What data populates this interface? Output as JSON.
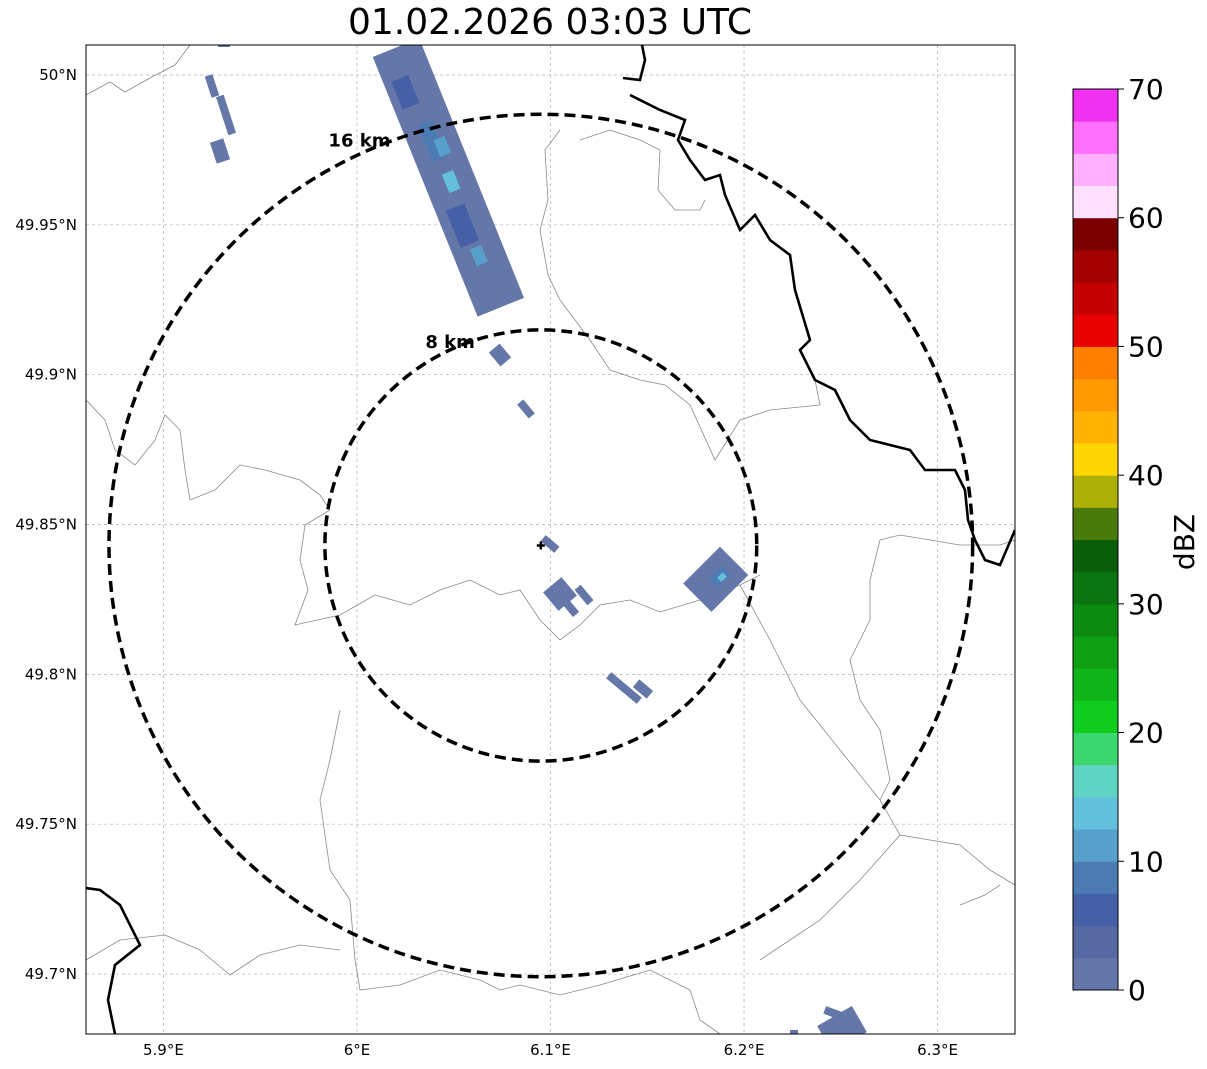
{
  "title": "01.02.2026 03:03 UTC",
  "map": {
    "extent": {
      "lon_min": 5.86,
      "lon_max": 6.34,
      "lat_min": 49.68,
      "lat_max": 50.01
    },
    "lon_ticks": [
      {
        "value": 5.9,
        "label": "5.9°E"
      },
      {
        "value": 6.0,
        "label": "6°E"
      },
      {
        "value": 6.1,
        "label": "6.1°E"
      },
      {
        "value": 6.2,
        "label": "6.2°E"
      },
      {
        "value": 6.3,
        "label": "6.3°E"
      }
    ],
    "lat_ticks": [
      {
        "value": 50.0,
        "label": "50°N"
      },
      {
        "value": 49.95,
        "label": "49.95°N"
      },
      {
        "value": 49.9,
        "label": "49.9°N"
      },
      {
        "value": 49.85,
        "label": "49.85°N"
      },
      {
        "value": 49.8,
        "label": "49.8°N"
      },
      {
        "value": 49.75,
        "label": "49.75°N"
      },
      {
        "value": 49.7,
        "label": "49.7°N"
      }
    ],
    "radar_site": {
      "lon": 6.095,
      "lat": 49.843
    },
    "range_rings": [
      {
        "label": "8 km",
        "radius_km": 8
      },
      {
        "label": "16 km",
        "radius_km": 16
      }
    ],
    "grid": true
  },
  "colorbar": {
    "label": "dBZ",
    "ticks": [
      "0",
      "10",
      "20",
      "30",
      "40",
      "50",
      "60",
      "70"
    ],
    "colors": [
      "#6477a8",
      "#5669a2",
      "#4560a6",
      "#4b7bb2",
      "#57a0cb",
      "#62c0dc",
      "#5fd4c4",
      "#3dd76f",
      "#10cc1e",
      "#10b418",
      "#0e9f12",
      "#0c8a10",
      "#0a7410",
      "#095e0b",
      "#4a7a0c",
      "#aeb00a",
      "#ffd700",
      "#ffb200",
      "#ff9a00",
      "#ff7f00",
      "#e60000",
      "#c40000",
      "#a30000",
      "#7a0000",
      "#ffe1ff",
      "#ffb0ff",
      "#ff70ff",
      "#f032f0"
    ]
  }
}
